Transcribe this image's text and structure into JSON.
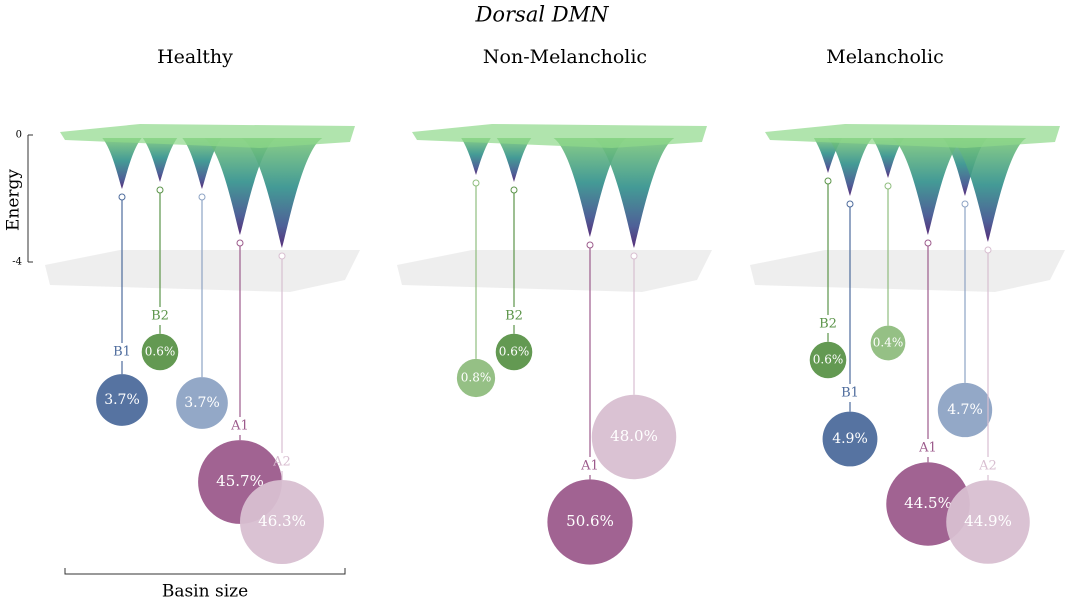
{
  "title": "Dorsal DMN",
  "energy_axis": {
    "label": "Energy",
    "ticks": [
      0,
      -4
    ]
  },
  "basin_size_label": "Basin size",
  "panels": [
    {
      "title": "Healthy",
      "basins": [
        {
          "label": "B1",
          "value": 3.7,
          "value_label": "3.7%",
          "color": "#4d6b9c"
        },
        {
          "label": "B2",
          "value": 0.6,
          "value_label": "0.6%",
          "color": "#5b9449"
        },
        {
          "value": 3.7,
          "value_label": "3.7%",
          "color": "#8da3c4"
        },
        {
          "label": "A1",
          "value": 45.7,
          "value_label": "45.7%",
          "color": "#9c5b8c"
        },
        {
          "label": "A2",
          "value": 46.3,
          "value_label": "46.3%",
          "color": "#d8bfd1"
        }
      ]
    },
    {
      "title": "Non-Melancholic",
      "basins": [
        {
          "value": 0.8,
          "value_label": "0.8%",
          "color": "#8fbd7e"
        },
        {
          "label": "B2",
          "value": 0.6,
          "value_label": "0.6%",
          "color": "#5b9449"
        },
        {
          "label": "A1",
          "value": 50.6,
          "value_label": "50.6%",
          "color": "#9c5b8c"
        },
        {
          "value": 48.0,
          "value_label": "48.0%",
          "color": "#d8bfd1"
        }
      ]
    },
    {
      "title": "Melancholic",
      "basins": [
        {
          "label": "B2",
          "value": 0.6,
          "value_label": "0.6%",
          "color": "#5b9449"
        },
        {
          "value": 0.4,
          "value_label": "0.4%",
          "color": "#8fbd7e"
        },
        {
          "label": "B1",
          "value": 4.9,
          "value_label": "4.9%",
          "color": "#4d6b9c"
        },
        {
          "value": 4.7,
          "value_label": "4.7%",
          "color": "#8da3c4"
        },
        {
          "label": "A1",
          "value": 44.5,
          "value_label": "44.5%",
          "color": "#9c5b8c"
        },
        {
          "label": "A2",
          "value": 44.9,
          "value_label": "44.9%",
          "color": "#d8bfd1"
        }
      ]
    }
  ]
}
